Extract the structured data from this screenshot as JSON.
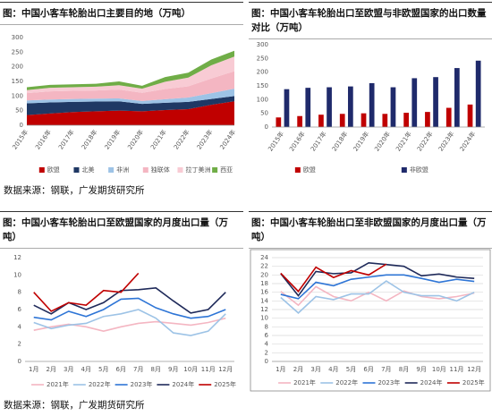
{
  "chart_data": [
    {
      "type": "area",
      "title": "图：中国小客车轮胎出口主要目的地（万吨）",
      "categories": [
        "2015年",
        "2016年",
        "2017年",
        "2018年",
        "2019年",
        "2020年",
        "2021年",
        "2022年",
        "2023年",
        "2024年"
      ],
      "series": [
        {
          "name": "欧盟",
          "color": "#c00000",
          "values": [
            35,
            40,
            45,
            48,
            50,
            48,
            52,
            55,
            70,
            82
          ]
        },
        {
          "name": "北美",
          "color": "#1f3864",
          "values": [
            40,
            38,
            35,
            33,
            32,
            25,
            25,
            25,
            20,
            18
          ]
        },
        {
          "name": "非洲",
          "color": "#9dc3e6",
          "values": [
            10,
            10,
            10,
            10,
            10,
            10,
            12,
            15,
            20,
            25
          ]
        },
        {
          "name": "独联体",
          "color": "#f4b6c2",
          "values": [
            25,
            28,
            28,
            28,
            30,
            28,
            35,
            38,
            50,
            60
          ]
        },
        {
          "name": "拉丁美洲",
          "color": "#f8cbd4",
          "values": [
            10,
            12,
            12,
            13,
            15,
            14,
            25,
            30,
            45,
            50
          ]
        },
        {
          "name": "西亚",
          "color": "#70ad47",
          "values": [
            10,
            10,
            10,
            10,
            13,
            10,
            16,
            17,
            20,
            20
          ]
        }
      ],
      "ylim": [
        0,
        300
      ],
      "yticks": [
        0,
        50,
        100,
        150,
        200,
        250,
        300
      ],
      "grid": false
    },
    {
      "type": "bar",
      "title": "图：中国小客车轮胎出口至欧盟与非欧盟国家的出口数量对比（万吨）",
      "categories": [
        "2015年",
        "2016年",
        "2017年",
        "2018年",
        "2019年",
        "2020年",
        "2021年",
        "2022年",
        "2023年",
        "2024年"
      ],
      "series": [
        {
          "name": "欧盟",
          "color": "#c00000",
          "values": [
            35,
            40,
            45,
            48,
            50,
            48,
            52,
            55,
            70,
            82
          ]
        },
        {
          "name": "非欧盟",
          "color": "#1f2a6b",
          "values": [
            138,
            143,
            145,
            148,
            160,
            145,
            178,
            182,
            215,
            242
          ]
        }
      ],
      "ylim": [
        0,
        300
      ],
      "yticks": [
        0,
        50,
        100,
        150,
        200,
        250,
        300
      ],
      "grid": false
    },
    {
      "type": "line",
      "title": "图：中国小客车轮胎出口至欧盟国家的月度出口量（万吨）",
      "categories": [
        "1月",
        "2月",
        "3月",
        "4月",
        "5月",
        "6月",
        "7月",
        "8月",
        "9月",
        "10月",
        "11月",
        "12月"
      ],
      "series": [
        {
          "name": "2021年",
          "color": "#f4b6c2",
          "values": [
            3.6,
            4.0,
            4.3,
            4.0,
            3.5,
            4.0,
            4.4,
            4.6,
            4.4,
            4.2,
            4.5,
            5.0
          ]
        },
        {
          "name": "2022年",
          "color": "#9dc3e6",
          "values": [
            4.5,
            3.8,
            4.2,
            4.4,
            5.2,
            5.5,
            6.0,
            5.0,
            3.3,
            3.0,
            3.5,
            5.5
          ]
        },
        {
          "name": "2023年",
          "color": "#2e75d6",
          "values": [
            5.1,
            4.8,
            5.8,
            5.2,
            6.0,
            7.2,
            7.3,
            6.2,
            5.5,
            5.0,
            5.2,
            6.0
          ]
        },
        {
          "name": "2024年",
          "color": "#1f2a5a",
          "values": [
            6.5,
            5.5,
            6.8,
            6.0,
            6.8,
            8.2,
            8.3,
            8.5,
            7.0,
            5.6,
            6.0,
            8.0
          ]
        },
        {
          "name": "2025年",
          "color": "#c00000",
          "values": [
            8.0,
            5.8,
            6.8,
            6.5,
            8.2,
            8.0,
            10.2,
            null,
            null,
            null,
            null,
            null
          ]
        }
      ],
      "ylim": [
        0,
        12
      ],
      "yticks": [
        0,
        2,
        4,
        6,
        8,
        10,
        12
      ],
      "grid": false
    },
    {
      "type": "line",
      "title": "图：中国小客车轮胎出口至非欧盟国家的月度出口量（万吨）",
      "categories": [
        "1月",
        "2月",
        "3月",
        "4月",
        "5月",
        "6月",
        "7月",
        "8月",
        "9月",
        "10月",
        "11月",
        "12月"
      ],
      "series": [
        {
          "name": "2021年",
          "color": "#f4b6c2",
          "values": [
            16.2,
            13.0,
            17.3,
            15.0,
            14.0,
            16.0,
            14.0,
            16.3,
            15.0,
            14.5,
            15.0,
            15.8
          ]
        },
        {
          "name": "2022年",
          "color": "#9dc3e6",
          "values": [
            14.8,
            11.2,
            15.0,
            14.3,
            15.6,
            15.6,
            18.6,
            16.0,
            15.2,
            15.2,
            14.0,
            16.0
          ]
        },
        {
          "name": "2023年",
          "color": "#2e75d6",
          "values": [
            15.5,
            14.5,
            18.3,
            17.5,
            19.0,
            19.5,
            20.0,
            20.0,
            19.2,
            18.3,
            19.0,
            18.5
          ]
        },
        {
          "name": "2024年",
          "color": "#1f2a5a",
          "values": [
            20.3,
            15.2,
            20.8,
            20.3,
            20.5,
            22.8,
            22.4,
            22.0,
            19.8,
            20.2,
            19.5,
            19.2
          ]
        },
        {
          "name": "2025年",
          "color": "#c00000",
          "values": [
            20.4,
            16.2,
            21.8,
            19.4,
            21.0,
            20.0,
            22.5,
            null,
            null,
            null,
            null,
            null
          ]
        }
      ],
      "ylim": [
        0,
        24
      ],
      "yticks": [
        0,
        2,
        4,
        6,
        8,
        10,
        12,
        14,
        16,
        18,
        20,
        22,
        24
      ],
      "grid": true
    }
  ],
  "notes": [
    "数据来源：钢联，广发期货研究所",
    "数据来源：钢联，广发期货研究所"
  ]
}
